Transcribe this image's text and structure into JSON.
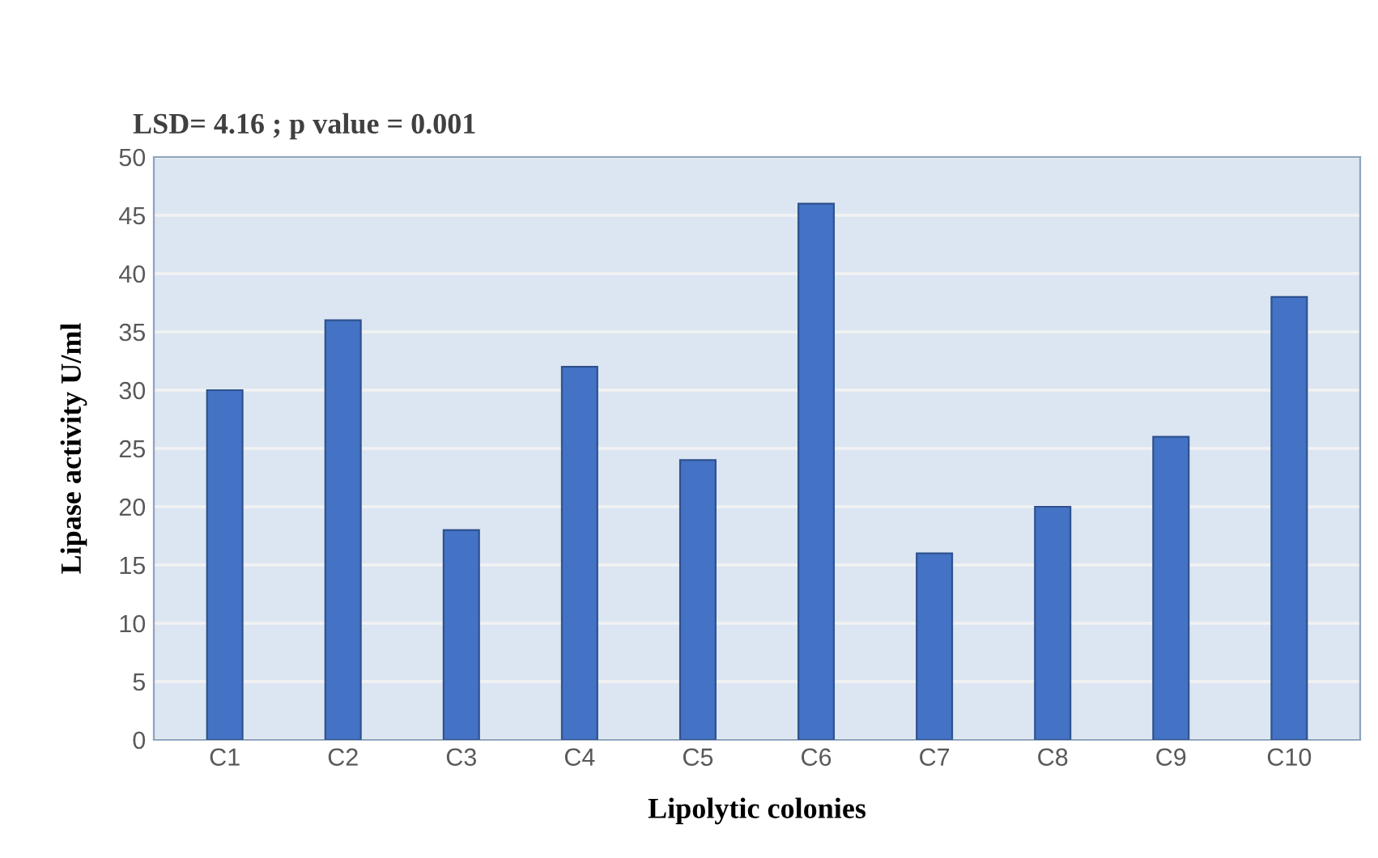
{
  "chart_data": {
    "type": "bar",
    "categories": [
      "C1",
      "C2",
      "C3",
      "C4",
      "C5",
      "C6",
      "C7",
      "C8",
      "C9",
      "C10"
    ],
    "values": [
      30,
      36,
      18,
      32,
      24,
      46,
      16,
      20,
      26,
      38
    ],
    "color": "#4472c4",
    "xlabel": "Lipolytic colonies",
    "ylabel": "Lipase activity U/ml",
    "annotations": [
      "LSD= 4.16 ; p value = 0.001"
    ],
    "ylim": [
      0,
      50
    ],
    "yticks": [
      0,
      5,
      10,
      15,
      20,
      25,
      30,
      35,
      40,
      45,
      50
    ],
    "grid": "y",
    "legend": false
  }
}
